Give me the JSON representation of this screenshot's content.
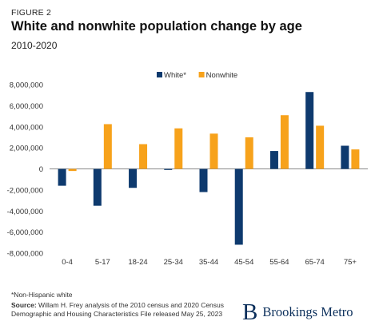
{
  "header": {
    "figure_label": "FIGURE 2",
    "title": "White and nonwhite population change by age",
    "subtitle": "2010-2020"
  },
  "colors": {
    "white": "#0e3a6e",
    "nonwhite": "#f7a21b",
    "axis": "#888888",
    "text": "#333333"
  },
  "chart_data": {
    "type": "bar",
    "title": "White and nonwhite population change by age",
    "subtitle": "2010-2020",
    "xlabel": "",
    "ylabel": "",
    "categories": [
      "0-4",
      "5-17",
      "18-24",
      "25-34",
      "35-44",
      "45-54",
      "55-64",
      "65-74",
      "75+"
    ],
    "series": [
      {
        "name": "White*",
        "color": "#0e3a6e",
        "values": [
          -1600000,
          -3500000,
          -1800000,
          -100000,
          -2200000,
          -7200000,
          1700000,
          7300000,
          2200000
        ]
      },
      {
        "name": "Nonwhite",
        "color": "#f7a21b",
        "values": [
          -200000,
          4250000,
          2350000,
          3850000,
          3350000,
          3000000,
          5100000,
          4100000,
          1850000
        ]
      }
    ],
    "ylim": [
      -8000000,
      8000000
    ],
    "yticks": [
      8000000,
      6000000,
      4000000,
      2000000,
      0,
      -2000000,
      -4000000,
      -6000000,
      -8000000
    ],
    "ytick_labels": [
      "8,000,000",
      "6,000,000",
      "4,000,000",
      "2,000,000",
      "0",
      "-2,000,000",
      "-4,000,000",
      "-6,000,000",
      "-8,000,000"
    ],
    "legend_position": "top-center",
    "grid": false
  },
  "footer": {
    "note": "*Non-Hispanic white",
    "source_label": "Source:",
    "source_text": "Willam H. Frey analysis of the 2010 census and 2020 Census Demographic and Housing Characteristics File released May 25, 2023"
  },
  "logo": {
    "mark": "B",
    "text": "Brookings Metro"
  }
}
